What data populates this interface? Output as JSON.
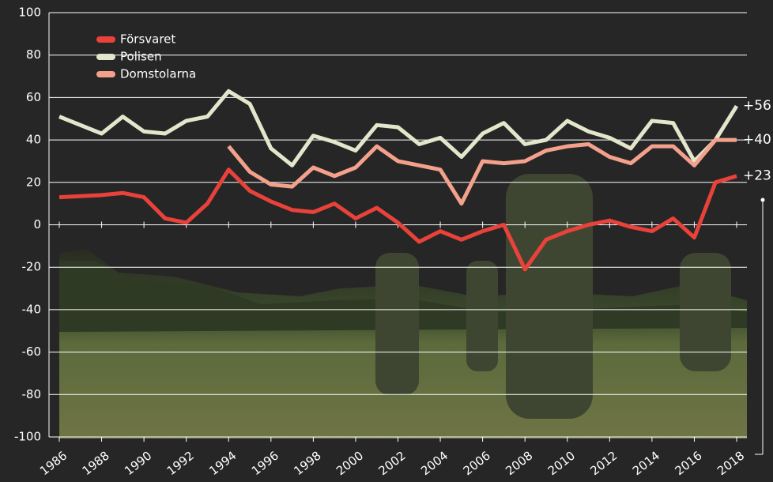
{
  "chart_data": {
    "type": "line",
    "x": [
      1986,
      1987,
      1988,
      1989,
      1990,
      1991,
      1992,
      1993,
      1994,
      1995,
      1996,
      1997,
      1998,
      1999,
      2000,
      2001,
      2002,
      2003,
      2004,
      2005,
      2006,
      2007,
      2008,
      2009,
      2010,
      2011,
      2012,
      2013,
      2014,
      2015,
      2016,
      2017,
      2018
    ],
    "series": [
      {
        "name": "Försvaret",
        "color": "#e8423a",
        "end_label": "+23",
        "values": [
          13,
          13.5,
          14,
          15,
          13,
          3,
          1,
          10,
          26,
          16,
          11,
          7,
          6,
          10,
          3,
          8,
          1,
          -8,
          -3,
          -7,
          -3,
          0,
          -21,
          -7,
          -3,
          0,
          2,
          -1,
          -3,
          3,
          -6,
          20,
          23
        ]
      },
      {
        "name": "Polisen",
        "color": "#e4e6cc",
        "end_label": "+56",
        "values": [
          51,
          47,
          43,
          51,
          44,
          43,
          49,
          51,
          63,
          57,
          36,
          28,
          42,
          39,
          35,
          47,
          46,
          38,
          41,
          32,
          43,
          48,
          38,
          40,
          49,
          44,
          41,
          36,
          49,
          48,
          30,
          40,
          56
        ]
      },
      {
        "name": "Domstolarna",
        "color": "#f4a18c",
        "end_label": "+40",
        "values": [
          null,
          null,
          null,
          null,
          null,
          null,
          null,
          null,
          37,
          25,
          19,
          18,
          27,
          23,
          27,
          37,
          30,
          28,
          26,
          10,
          30,
          29,
          30,
          35,
          37,
          38,
          32,
          29,
          37,
          37,
          28,
          40,
          40
        ]
      }
    ],
    "xlim": [
      1986,
      2018
    ],
    "xticks": [
      1986,
      1988,
      1990,
      1992,
      1994,
      1996,
      1998,
      2000,
      2002,
      2004,
      2006,
      2008,
      2010,
      2012,
      2014,
      2016,
      2018
    ],
    "ylim": [
      -100,
      100
    ],
    "yticks": [
      -100,
      -80,
      -60,
      -40,
      -20,
      0,
      20,
      40,
      60,
      80,
      100
    ],
    "grid": true,
    "legend": "top-left"
  }
}
